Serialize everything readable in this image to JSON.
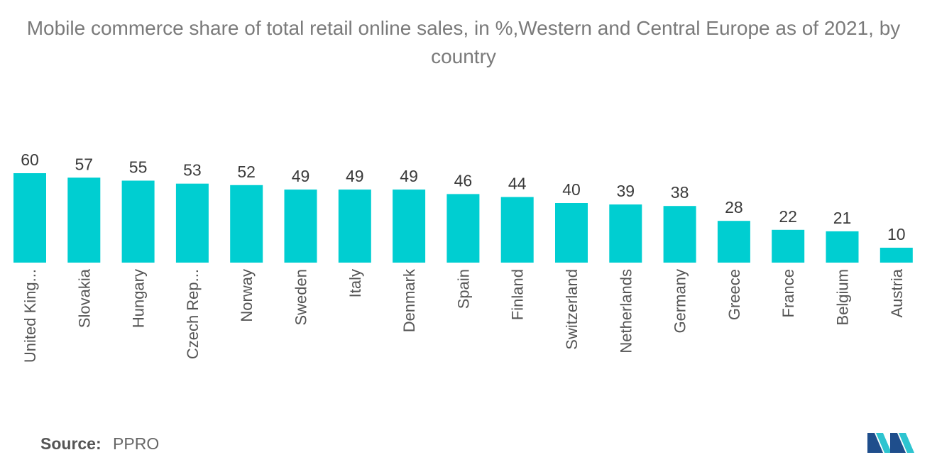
{
  "title": "Mobile commerce share of total retail online sales, in %,Western and Central Europe as of 2021, by country",
  "source": {
    "label": "Source:",
    "value": "PPRO"
  },
  "colors": {
    "bar": "#00CED1",
    "logo_dark": "#1f4e8c",
    "logo_light": "#2ec4d0"
  },
  "chart_data": {
    "type": "bar",
    "categories": [
      "United King...",
      "Slovakia",
      "Hungary",
      "Czech Rep...",
      "Norway",
      "Sweden",
      "Italy",
      "Denmark",
      "Spain",
      "Finland",
      "Switzerland",
      "Netherlands",
      "Germany",
      "Greece",
      "France",
      "Belgium",
      "Austria"
    ],
    "values": [
      60,
      57,
      55,
      53,
      52,
      49,
      49,
      49,
      46,
      44,
      40,
      39,
      38,
      28,
      22,
      21,
      10
    ],
    "ylim": [
      0,
      60
    ],
    "data_labels": true,
    "grid": false
  }
}
